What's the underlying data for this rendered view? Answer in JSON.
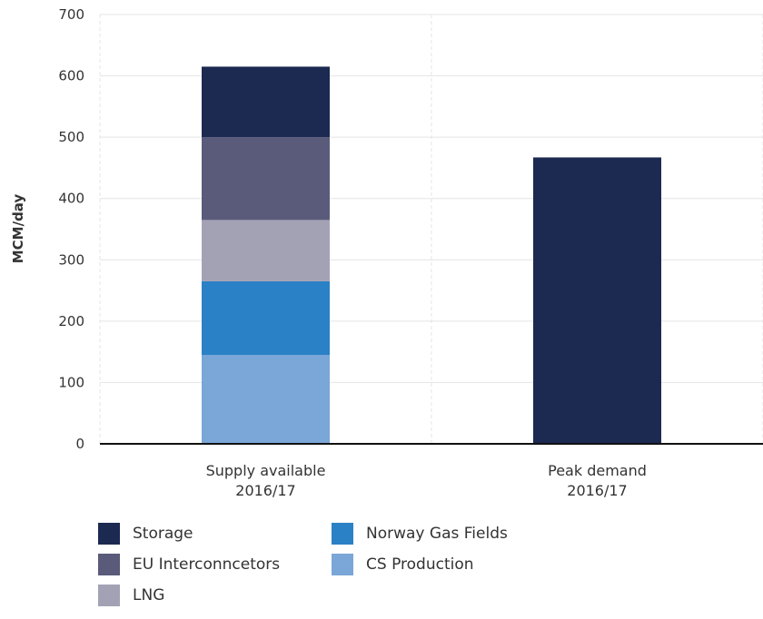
{
  "chart_data": {
    "type": "bar",
    "stacked": true,
    "ylabel": "MCM/day",
    "ylim": [
      0,
      700
    ],
    "yticks": [
      0,
      100,
      200,
      300,
      400,
      500,
      600,
      700
    ],
    "grid": true,
    "legend_position": "bottom-left",
    "categories": [
      {
        "line1": "Supply available",
        "line2": "2016/17"
      },
      {
        "line1": "Peak demand",
        "line2": "2016/17"
      }
    ],
    "series": [
      {
        "name": "CS Production",
        "color": "#7aa6d8",
        "values": [
          145,
          0
        ]
      },
      {
        "name": "Norway Gas Fields",
        "color": "#2a81c6",
        "values": [
          120,
          0
        ]
      },
      {
        "name": "LNG",
        "color": "#a3a2b5",
        "values": [
          100,
          0
        ]
      },
      {
        "name": "EU Interconncetors",
        "color": "#5a5a7a",
        "values": [
          135,
          0
        ]
      },
      {
        "name": "Storage",
        "color": "#1c2951",
        "values": [
          115,
          467
        ]
      }
    ]
  },
  "legend": {
    "order": [
      "Storage",
      "EU Interconncetors",
      "LNG",
      "Norway Gas Fields",
      "CS Production"
    ]
  }
}
